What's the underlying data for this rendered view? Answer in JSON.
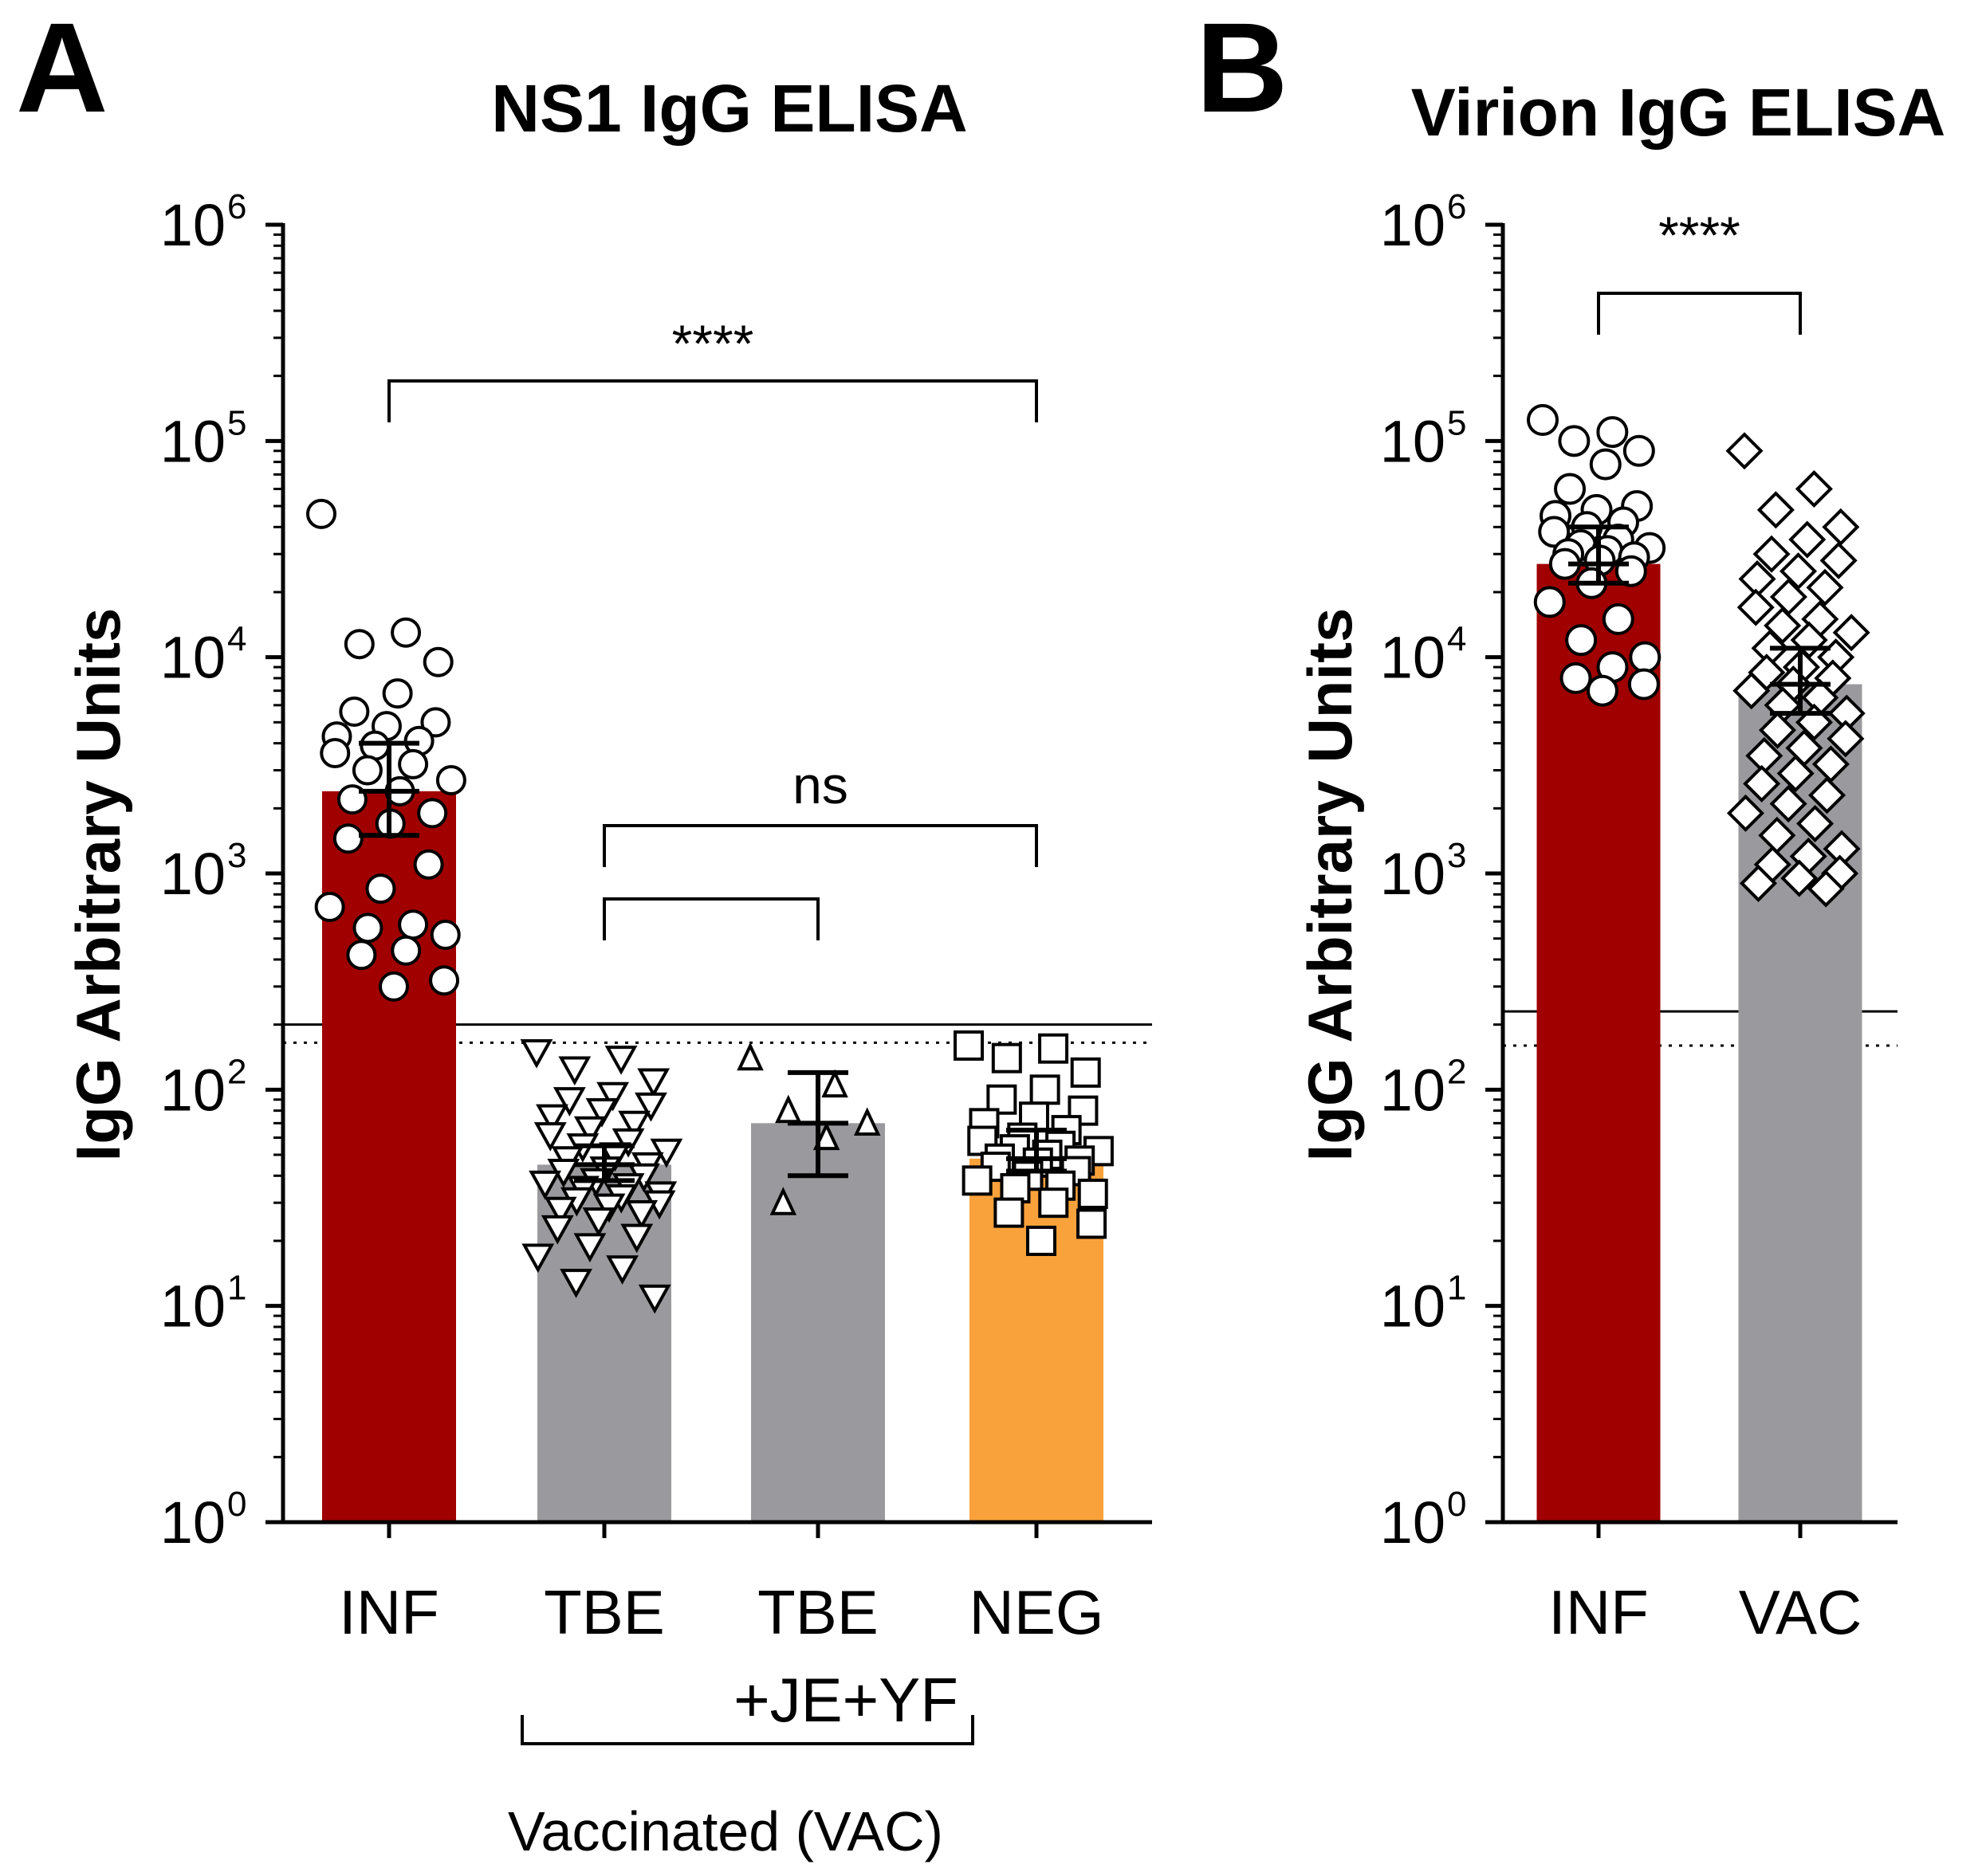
{
  "panels": [
    {
      "letter": "A"
    },
    {
      "letter": "B"
    }
  ],
  "vaccinated_group_label": "Vaccinated (VAC)",
  "chart_data": [
    {
      "type": "bar",
      "title": "NS1 IgG ELISA",
      "ylabel": "IgG Arbitrary Units",
      "xlabel": "",
      "yscale": "log10",
      "ylim": [
        1,
        1000000
      ],
      "ytick_exponents": [
        0,
        1,
        2,
        3,
        4,
        5,
        6
      ],
      "ytick_base": "10",
      "categories": [
        "INF",
        "TBE",
        "TBE\n+JE+YF",
        "NEG"
      ],
      "category_lines": [
        [
          "INF"
        ],
        [
          "TBE"
        ],
        [
          "TBE",
          "+JE+YF"
        ],
        [
          "NEG"
        ]
      ],
      "values": [
        2400,
        45,
        70,
        48
      ],
      "error_low": [
        1500,
        38,
        40,
        42
      ],
      "error_high": [
        4000,
        55,
        120,
        65
      ],
      "bar_colors": [
        "#a00000",
        "#9a9a9e",
        "#9a9a9e",
        "#f9a23c"
      ],
      "markers": [
        "circle",
        "triangle-down",
        "triangle-up",
        "square"
      ],
      "points": [
        [
          46000,
          13000,
          11500,
          9500,
          6800,
          5600,
          5000,
          4800,
          4300,
          4100,
          3900,
          3600,
          3200,
          3000,
          2700,
          2400,
          2200,
          1900,
          1700,
          1450,
          1100,
          850,
          700,
          580,
          560,
          520,
          440,
          420,
          320,
          300
        ],
        [
          150,
          140,
          125,
          110,
          95,
          90,
          85,
          80,
          75,
          70,
          66,
          62,
          58,
          55,
          52,
          50,
          48,
          45,
          43,
          42,
          40,
          38,
          37,
          36,
          35,
          33,
          32,
          31,
          30,
          29,
          28,
          27,
          25,
          23,
          21,
          19,
          17,
          15,
          13,
          11
        ],
        [
          140,
          105,
          80,
          70,
          60,
          30
        ],
        [
          160,
          155,
          140,
          120,
          100,
          90,
          80,
          75,
          70,
          65,
          60,
          58,
          55,
          53,
          52,
          50,
          48,
          47,
          46,
          44,
          42,
          40,
          38,
          36,
          35,
          33,
          30,
          27,
          24,
          20
        ]
      ],
      "cutoff_solid": 200,
      "cutoff_dotted": 165,
      "significance": [
        {
          "from": 0,
          "to": 3,
          "label": "****"
        },
        {
          "from": 1,
          "to": 3,
          "label": "ns"
        },
        {
          "from": 1,
          "to": 2,
          "label": ""
        }
      ],
      "group_bracket": {
        "from": 1,
        "to": 2,
        "label": "Vaccinated (VAC)"
      }
    },
    {
      "type": "bar",
      "title": "Virion IgG ELISA",
      "ylabel": "IgG Arbitrary Units",
      "xlabel": "",
      "yscale": "log10",
      "ylim": [
        1,
        1000000
      ],
      "ytick_exponents": [
        0,
        1,
        2,
        3,
        4,
        5,
        6
      ],
      "ytick_base": "10",
      "categories": [
        "INF",
        "VAC"
      ],
      "category_lines": [
        [
          "INF"
        ],
        [
          "VAC"
        ]
      ],
      "values": [
        27000,
        7500
      ],
      "error_low": [
        22000,
        5500
      ],
      "error_high": [
        40000,
        11000
      ],
      "bar_colors": [
        "#a00000",
        "#9a9a9e"
      ],
      "markers": [
        "circle",
        "diamond"
      ],
      "points": [
        [
          125000,
          110000,
          100000,
          90000,
          78000,
          60000,
          50000,
          48000,
          45000,
          42000,
          40000,
          38000,
          35000,
          33000,
          32000,
          31000,
          30000,
          29000,
          28000,
          27000,
          25000,
          22000,
          18000,
          15000,
          12000,
          10000,
          9000,
          8000,
          7500,
          7000
        ],
        [
          90000,
          60000,
          48000,
          40000,
          35000,
          30000,
          28000,
          25000,
          23000,
          21000,
          19000,
          17000,
          15000,
          14000,
          13000,
          12000,
          11000,
          10000,
          9000,
          8500,
          8000,
          7500,
          7000,
          6500,
          6000,
          5500,
          5000,
          4600,
          4200,
          3800,
          3500,
          3200,
          2900,
          2600,
          2300,
          2100,
          1900,
          1700,
          1500,
          1300,
          1200,
          1100,
          1000,
          950,
          900,
          850
        ]
      ],
      "cutoff_solid": 230,
      "cutoff_dotted": 160,
      "significance": [
        {
          "from": 0,
          "to": 1,
          "label": "****"
        }
      ]
    }
  ]
}
